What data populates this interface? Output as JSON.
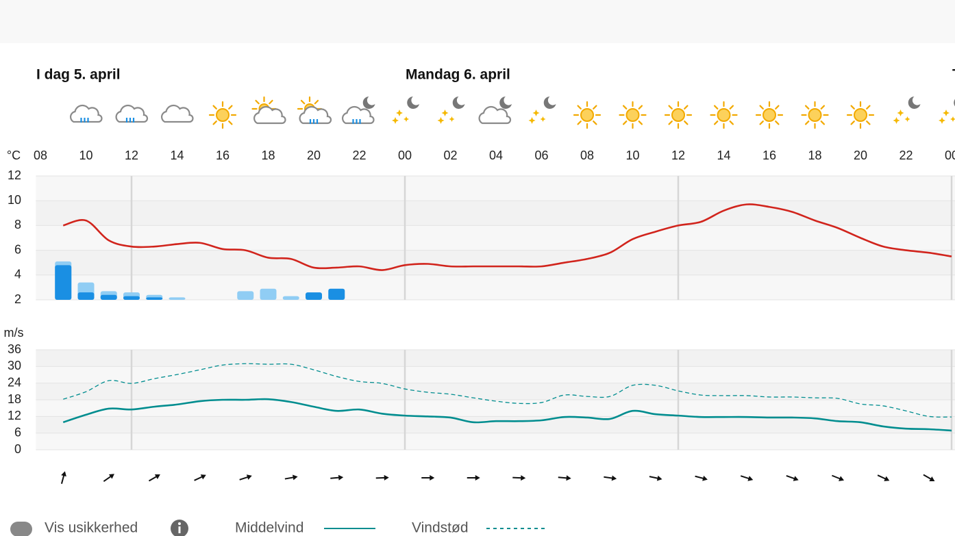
{
  "days": [
    "I dag 5. april",
    "Mandag 6. april",
    "T"
  ],
  "chart_data": [
    {
      "type": "combo",
      "unit_label": "°C",
      "x": [
        9,
        10,
        11,
        12,
        13,
        14,
        15,
        16,
        17,
        18,
        19,
        20,
        21,
        22,
        23,
        24,
        25,
        26,
        27,
        28,
        29,
        30,
        31,
        32,
        33,
        34,
        35,
        36,
        37,
        38,
        39,
        40,
        41,
        42,
        43,
        44,
        45,
        46,
        47,
        48
      ],
      "xlim": [
        7.8,
        48.15
      ],
      "xticks": [
        {
          "value": 8,
          "label": "08"
        },
        {
          "value": 10,
          "label": "10"
        },
        {
          "value": 12,
          "label": "12"
        },
        {
          "value": 14,
          "label": "14"
        },
        {
          "value": 16,
          "label": "16"
        },
        {
          "value": 18,
          "label": "18"
        },
        {
          "value": 20,
          "label": "20"
        },
        {
          "value": 22,
          "label": "22"
        },
        {
          "value": 24,
          "label": "00"
        },
        {
          "value": 26,
          "label": "02"
        },
        {
          "value": 28,
          "label": "04"
        },
        {
          "value": 30,
          "label": "06"
        },
        {
          "value": 32,
          "label": "08"
        },
        {
          "value": 34,
          "label": "10"
        },
        {
          "value": 36,
          "label": "12"
        },
        {
          "value": 38,
          "label": "14"
        },
        {
          "value": 40,
          "label": "16"
        },
        {
          "value": 42,
          "label": "18"
        },
        {
          "value": 44,
          "label": "20"
        },
        {
          "value": 46,
          "label": "22"
        },
        {
          "value": 48,
          "label": "00"
        }
      ],
      "ylim": [
        2,
        12
      ],
      "yticks": [
        2,
        4,
        6,
        8,
        10,
        12
      ],
      "series": [
        {
          "color": "#d1241c",
          "values": [
            8.0,
            8.4,
            6.8,
            6.3,
            6.3,
            6.5,
            6.6,
            6.1,
            6.0,
            5.4,
            5.3,
            4.6,
            4.6,
            4.7,
            4.4,
            4.8,
            4.9,
            4.7,
            4.7,
            4.7,
            4.7,
            4.7,
            5.0,
            5.3,
            5.8,
            6.9,
            7.5,
            8.0,
            8.3,
            9.2,
            9.7,
            9.5,
            9.1,
            8.4,
            7.8,
            7.0,
            6.3,
            6.0,
            5.8,
            5.5
          ]
        }
      ],
      "bars": {
        "x": [
          9,
          10,
          11,
          12,
          13,
          14,
          15,
          16,
          17,
          18,
          19,
          20,
          21
        ],
        "series": [
          {
            "color": "#90cdf4",
            "values": [
              5.1,
              3.4,
              2.7,
              2.6,
              2.4,
              2.2,
              null,
              null,
              2.7,
              2.9,
              2.3,
              null,
              null
            ]
          },
          {
            "color": "#1a8fe3",
            "values": [
              4.8,
              2.6,
              2.4,
              2.3,
              2.2,
              null,
              null,
              null,
              null,
              null,
              null,
              2.6,
              2.9
            ]
          }
        ]
      }
    },
    {
      "type": "line",
      "unit_label": "m/s",
      "x": [
        9,
        10,
        11,
        12,
        13,
        14,
        15,
        16,
        17,
        18,
        19,
        20,
        21,
        22,
        23,
        24,
        25,
        26,
        27,
        28,
        29,
        30,
        31,
        32,
        33,
        34,
        35,
        36,
        37,
        38,
        39,
        40,
        41,
        42,
        43,
        44,
        45,
        46,
        47,
        48
      ],
      "xlim": [
        7.8,
        48.15
      ],
      "xticks": [
        12,
        24,
        36,
        48
      ],
      "ylim": [
        0,
        36
      ],
      "yticks": [
        0,
        6,
        12,
        18,
        24,
        30,
        36
      ],
      "series": [
        {
          "name": "Middelvind",
          "color": "#008d8f",
          "dash": false,
          "values": [
            9.9,
            12.6,
            14.8,
            14.5,
            15.5,
            16.3,
            17.5,
            18.0,
            18.0,
            18.2,
            17.2,
            15.5,
            14.0,
            14.5,
            13.0,
            12.3,
            12.0,
            11.6,
            9.9,
            10.3,
            10.3,
            10.6,
            11.8,
            11.6,
            11.1,
            14.0,
            12.8,
            12.3,
            11.8,
            11.8,
            11.8,
            11.6,
            11.6,
            11.3,
            10.3,
            9.9,
            8.4,
            7.6,
            7.4,
            6.9
          ]
        },
        {
          "name": "Vindstød",
          "color": "#008d8f",
          "dash": true,
          "values": [
            18.2,
            20.9,
            24.9,
            23.9,
            25.6,
            27.1,
            28.8,
            30.5,
            31.0,
            30.8,
            30.8,
            28.8,
            26.4,
            24.6,
            23.9,
            21.9,
            20.7,
            20.0,
            18.7,
            17.5,
            16.7,
            17.0,
            19.7,
            19.2,
            19.2,
            23.2,
            23.2,
            21.2,
            19.7,
            19.5,
            19.5,
            19.0,
            19.0,
            18.7,
            18.5,
            16.5,
            15.8,
            14.0,
            12.0,
            11.8
          ]
        }
      ],
      "directions": {
        "x": [
          9,
          11,
          13,
          15,
          17,
          19,
          21,
          23,
          25,
          27,
          29,
          31,
          33,
          35,
          37,
          39,
          41,
          43,
          45,
          47
        ],
        "values": [
          15,
          55,
          60,
          65,
          72,
          80,
          85,
          88,
          90,
          90,
          92,
          95,
          98,
          102,
          105,
          108,
          110,
          112,
          115,
          120
        ]
      }
    }
  ],
  "controls": {
    "toggle_label": "Vis usikkerhed"
  }
}
